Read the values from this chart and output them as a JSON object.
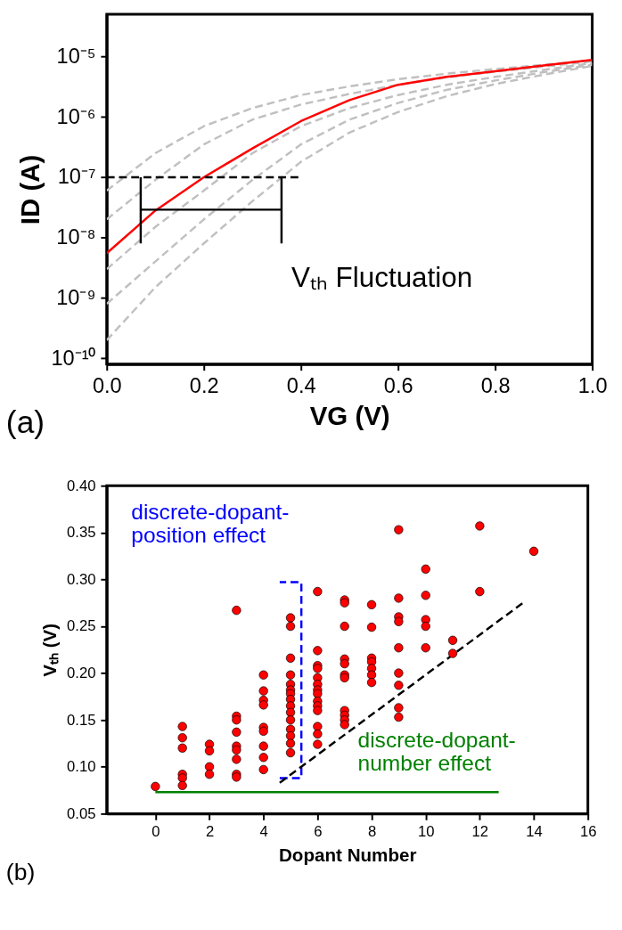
{
  "chart_data": [
    {
      "type": "line",
      "xlabel": "VG (V)",
      "ylabel": "ID (A)",
      "log": true,
      "xlim": [
        0,
        1.0
      ],
      "ylim": [
        8e-11,
        5e-05
      ],
      "xticks": [
        {
          "value": 0,
          "label": "0.0"
        },
        {
          "value": 0.2,
          "label": "0.2"
        },
        {
          "value": 0.4,
          "label": "0.4"
        },
        {
          "value": 0.6,
          "label": "0.6"
        },
        {
          "value": 0.8,
          "label": "0.8"
        },
        {
          "value": 1.0,
          "label": "1.0"
        }
      ],
      "yticks": [
        {
          "value": 1e-10,
          "label": "10⁻¹⁰"
        },
        {
          "value": 1e-09,
          "label": "10⁻⁹"
        },
        {
          "value": 1e-08,
          "label": "10⁻⁸"
        },
        {
          "value": 1e-07,
          "label": "10⁻⁷"
        },
        {
          "value": 1e-06,
          "label": "10⁻⁶"
        },
        {
          "value": 1e-05,
          "label": "10⁻⁵"
        }
      ],
      "series": [
        {
          "color": "#c0c0c0",
          "line_style": "dashed",
          "x": [
            0,
            0.1,
            0.2,
            0.3,
            0.4,
            0.5,
            0.6,
            0.7,
            0.8,
            0.9,
            1.0
          ],
          "values": [
            6e-08,
            2.5e-07,
            7e-07,
            1.4e-06,
            2.3e-06,
            3.2e-06,
            4.2e-06,
            5.2e-06,
            6.2e-06,
            7.3e-06,
            8.7e-06
          ]
        },
        {
          "color": "#c0c0c0",
          "line_style": "dashed",
          "x": [
            0,
            0.1,
            0.2,
            0.3,
            0.4,
            0.5,
            0.6,
            0.7,
            0.8,
            0.9,
            1.0
          ],
          "values": [
            2e-08,
            9e-08,
            3.5e-07,
            9e-07,
            1.6e-06,
            2.4e-06,
            3.4e-06,
            4.5e-06,
            5.6e-06,
            6.8e-06,
            8.3e-06
          ]
        },
        {
          "color": "#c0c0c0",
          "line_style": "dashed",
          "x": [
            0,
            0.1,
            0.2,
            0.3,
            0.4,
            0.5,
            0.6,
            0.7,
            0.8,
            0.9,
            1.0
          ],
          "values": [
            3e-09,
            1.5e-08,
            6e-08,
            2.5e-07,
            7e-07,
            1.4e-06,
            2.3e-06,
            3.4e-06,
            4.6e-06,
            6e-06,
            7.8e-06
          ]
        },
        {
          "color": "#c0c0c0",
          "line_style": "dashed",
          "x": [
            0,
            0.1,
            0.2,
            0.3,
            0.4,
            0.5,
            0.6,
            0.7,
            0.8,
            0.9,
            1.0
          ],
          "values": [
            8e-10,
            4e-09,
            2e-08,
            9e-08,
            3.5e-07,
            9e-07,
            1.7e-06,
            2.8e-06,
            4e-06,
            5.5e-06,
            7.3e-06
          ]
        },
        {
          "color": "#c0c0c0",
          "line_style": "dashed",
          "x": [
            0,
            0.1,
            0.2,
            0.3,
            0.4,
            0.5,
            0.6,
            0.7,
            0.8,
            0.9,
            1.0
          ],
          "values": [
            2e-10,
            1.5e-09,
            8e-09,
            4e-08,
            1.8e-07,
            5.5e-07,
            1.2e-06,
            2.2e-06,
            3.5e-06,
            5e-06,
            7e-06
          ]
        },
        {
          "color": "#ff0000",
          "line_style": "solid",
          "x": [
            0,
            0.1,
            0.2,
            0.3,
            0.4,
            0.5,
            0.6,
            0.7,
            0.8,
            0.9,
            1.0
          ],
          "values": [
            5.5e-09,
            2.8e-08,
            1e-07,
            3e-07,
            8.5e-07,
            1.9e-06,
            3.4e-06,
            4.6e-06,
            5.7e-06,
            7.1e-06,
            8.8e-06
          ]
        },
        {
          "color": "#000000",
          "line_style": "dashed",
          "x": [
            0,
            0.4
          ],
          "values": [
            1e-07,
            1e-07
          ]
        },
        {
          "color": "#000000",
          "line_style": "solid",
          "x": [
            0.07,
            0.07
          ],
          "values": [
            8e-09,
            1e-07
          ]
        },
        {
          "color": "#000000",
          "line_style": "solid",
          "x": [
            0.36,
            0.36
          ],
          "values": [
            8e-09,
            1e-07
          ]
        },
        {
          "name": "Vₜₕ Fluctuation",
          "color": "#000000",
          "line_style": "solid",
          "x": [
            0.07,
            0.36
          ],
          "values": [
            2.9e-08,
            2.9e-08
          ]
        }
      ],
      "annotations": [
        "(a)"
      ]
    },
    {
      "type": "scatter",
      "xlabel": "Dopant Number",
      "ylabel": "Vₜₕ (V)",
      "xlim": [
        -1.8,
        16
      ],
      "ylim": [
        0.05,
        0.4
      ],
      "xticks": [
        0,
        2,
        4,
        6,
        8,
        10,
        12,
        14,
        16
      ],
      "yticks": [
        {
          "value": 0.05,
          "label": "0.05"
        },
        {
          "value": 0.1,
          "label": "0.10"
        },
        {
          "value": 0.15,
          "label": "0.15"
        },
        {
          "value": 0.2,
          "label": "0.20"
        },
        {
          "value": 0.25,
          "label": "0.25"
        },
        {
          "value": 0.3,
          "label": "0.30"
        },
        {
          "value": 0.35,
          "label": "0.35"
        },
        {
          "value": 0.4,
          "label": "0.40"
        }
      ],
      "series": [
        {
          "type": "line",
          "name": "discrete-dopant-\nposition effect",
          "color": "#0000ff",
          "line_style": "dashed",
          "x": [
            4.6,
            5.4,
            5.4,
            4.6
          ],
          "values": [
            0.088,
            0.088,
            0.297,
            0.297
          ]
        },
        {
          "type": "line",
          "color": "#000000",
          "line_style": "dashed",
          "x": [
            4.6,
            13.6
          ],
          "values": [
            0.083,
            0.275
          ]
        },
        {
          "type": "line",
          "name": "discrete-dopant-\nnumber effect",
          "color": "#008000",
          "line_style": "solid",
          "x": [
            0,
            12.7
          ],
          "values": [
            0.073,
            0.073
          ]
        },
        {
          "color": "#ff0000",
          "marker": "circle",
          "x": [
            0,
            1,
            1,
            1,
            1,
            1,
            1,
            2,
            2,
            2,
            2,
            3,
            3,
            3,
            3,
            3,
            3,
            3,
            3,
            3,
            4,
            4,
            4,
            4,
            4,
            4,
            4,
            4,
            4,
            5,
            5,
            5,
            5,
            5,
            5,
            5,
            5,
            5,
            5,
            5,
            5,
            5,
            5,
            5,
            6,
            6,
            6,
            6,
            6,
            6,
            6,
            6,
            6,
            6,
            6,
            6,
            6,
            6,
            7,
            7,
            7,
            7,
            7,
            7,
            7,
            7,
            7,
            7,
            7,
            8,
            8,
            8,
            8,
            8,
            8,
            8,
            9,
            9,
            9,
            9,
            9,
            9,
            9,
            9,
            9,
            10,
            10,
            10,
            10,
            10,
            11,
            11,
            12,
            12,
            14
          ],
          "values": [
            0.079,
            0.143,
            0.131,
            0.12,
            0.092,
            0.088,
            0.08,
            0.124,
            0.117,
            0.1,
            0.092,
            0.267,
            0.154,
            0.15,
            0.137,
            0.122,
            0.118,
            0.108,
            0.092,
            0.089,
            0.198,
            0.181,
            0.171,
            0.166,
            0.142,
            0.138,
            0.122,
            0.11,
            0.097,
            0.259,
            0.25,
            0.216,
            0.198,
            0.188,
            0.182,
            0.178,
            0.172,
            0.165,
            0.158,
            0.15,
            0.14,
            0.133,
            0.125,
            0.115,
            0.287,
            0.224,
            0.208,
            0.205,
            0.195,
            0.188,
            0.182,
            0.178,
            0.17,
            0.165,
            0.16,
            0.143,
            0.135,
            0.124,
            0.278,
            0.275,
            0.25,
            0.215,
            0.21,
            0.198,
            0.195,
            0.16,
            0.155,
            0.15,
            0.145,
            0.273,
            0.249,
            0.216,
            0.212,
            0.205,
            0.198,
            0.19,
            0.353,
            0.28,
            0.26,
            0.255,
            0.227,
            0.2,
            0.187,
            0.163,
            0.153,
            0.311,
            0.283,
            0.257,
            0.25,
            0.227,
            0.235,
            0.221,
            0.357,
            0.287,
            0.33
          ]
        }
      ],
      "annotations": [
        "(b)"
      ]
    }
  ]
}
